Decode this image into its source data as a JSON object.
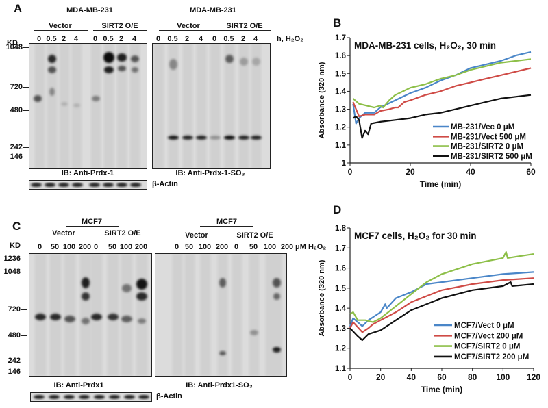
{
  "panels": {
    "a": {
      "letter": "A",
      "cell_line_left": "MDA-MB-231",
      "cell_line_right": "MDA-MB-231",
      "group_vector": "Vector",
      "group_sirt2": "SIRT2 O/E",
      "lanes_left": [
        "0",
        "0.5",
        "2",
        "4",
        "0",
        "0.5",
        "2",
        "4"
      ],
      "lanes_right": [
        "0",
        "0.5",
        "2",
        "4",
        "0",
        "0.5",
        "2",
        "4"
      ],
      "unit_label": "h,  H₂O₂",
      "kd_header": "KD",
      "kd_markers": [
        "1048",
        "720",
        "480",
        "242",
        "146"
      ],
      "ib_left": "IB: Anti-Prdx-1",
      "ib_right": "IB: Anti-Prdx-1-SO₃",
      "loading_control": "β-Actin"
    },
    "c": {
      "letter": "C",
      "cell_line_left": "MCF7",
      "cell_line_right": "MCF7",
      "group_vector": "Vector",
      "group_sirt2": "SIRT2 O/E",
      "lanes_left": [
        "0",
        "50",
        "100",
        "200",
        "0",
        "50",
        "100",
        "200"
      ],
      "lanes_right": [
        "0",
        "50",
        "100",
        "200",
        "0",
        "50",
        "100",
        "200"
      ],
      "unit_label": "μM H₂O₂",
      "kd_header": "KD",
      "kd_markers": [
        "1236",
        "1048",
        "720",
        "480",
        "242",
        "146"
      ],
      "ib_left": "IB: Anti-Prdx1",
      "ib_right": "IB: Anti-Prdx1-SO₃",
      "loading_control": "β-Actin"
    },
    "b_letter": "B",
    "d_letter": "D"
  },
  "chart_data": [
    {
      "panel": "B",
      "type": "line",
      "title": "MDA-MB-231 cells, H₂O₂,  30 min",
      "xlabel": "Time (min)",
      "ylabel": "Absorbance (320 nm)",
      "xlim": [
        0,
        60
      ],
      "ylim": [
        1,
        1.7
      ],
      "xticks": [
        "0",
        "20",
        "40",
        "60"
      ],
      "yticks": [
        "1",
        "1.1",
        "1.2",
        "1.3",
        "1.4",
        "1.5",
        "1.6",
        "1.7"
      ],
      "xtick_values": [
        0,
        20,
        40,
        60
      ],
      "ytick_values": [
        1,
        1.1,
        1.2,
        1.3,
        1.4,
        1.5,
        1.6,
        1.7
      ],
      "grid": false,
      "legend_position": "bottom-right",
      "series": [
        {
          "name": "MB-231/Vec 0 μM",
          "color": "#4a86c8",
          "x": [
            1,
            2,
            3,
            5,
            8,
            10,
            15,
            20,
            25,
            30,
            35,
            40,
            45,
            50,
            55,
            60
          ],
          "y": [
            1.33,
            1.22,
            1.25,
            1.28,
            1.28,
            1.31,
            1.35,
            1.39,
            1.42,
            1.46,
            1.49,
            1.53,
            1.55,
            1.57,
            1.6,
            1.62
          ]
        },
        {
          "name": "MB-231/Vect 500 μM",
          "color": "#cf4b46",
          "x": [
            1,
            3,
            5,
            8,
            10,
            13,
            15,
            16,
            18,
            20,
            25,
            30,
            35,
            40,
            45,
            50,
            55,
            60
          ],
          "y": [
            1.34,
            1.26,
            1.27,
            1.27,
            1.29,
            1.3,
            1.31,
            1.31,
            1.34,
            1.35,
            1.38,
            1.4,
            1.43,
            1.45,
            1.47,
            1.49,
            1.51,
            1.53
          ]
        },
        {
          "name": "MB-231/SIRT2 0 μM",
          "color": "#8dbf48",
          "x": [
            1,
            3,
            8,
            10,
            11,
            13,
            15,
            20,
            25,
            30,
            35,
            40,
            45,
            50,
            55,
            60
          ],
          "y": [
            1.36,
            1.33,
            1.31,
            1.32,
            1.31,
            1.35,
            1.38,
            1.42,
            1.44,
            1.47,
            1.49,
            1.52,
            1.54,
            1.56,
            1.57,
            1.58
          ]
        },
        {
          "name": "MB-231/SIRT2 500 μM",
          "color": "#111111",
          "x": [
            1,
            2,
            3,
            4,
            5,
            6,
            7,
            10,
            15,
            20,
            25,
            30,
            35,
            40,
            45,
            50,
            55,
            60
          ],
          "y": [
            1.25,
            1.26,
            1.24,
            1.14,
            1.18,
            1.16,
            1.22,
            1.23,
            1.24,
            1.25,
            1.27,
            1.28,
            1.3,
            1.32,
            1.34,
            1.36,
            1.37,
            1.38
          ]
        }
      ]
    },
    {
      "panel": "D",
      "type": "line",
      "title": "MCF7 cells,  H₂O₂ for 30 min",
      "xlabel": "Time (min)",
      "ylabel": "Absorbance (320 nm)",
      "xlim": [
        0,
        120
      ],
      "ylim": [
        1.1,
        1.8
      ],
      "xticks": [
        "0",
        "20",
        "40",
        "60",
        "80",
        "100",
        "120"
      ],
      "yticks": [
        "1.1",
        "1.2",
        "1.3",
        "1.4",
        "1.5",
        "1.6",
        "1.7",
        "1.8"
      ],
      "xtick_values": [
        0,
        20,
        40,
        60,
        80,
        100,
        120
      ],
      "ytick_values": [
        1.1,
        1.2,
        1.3,
        1.4,
        1.5,
        1.6,
        1.7,
        1.8
      ],
      "grid": false,
      "legend_position": "bottom-right",
      "series": [
        {
          "name": "MCF7/Vect 0 μM",
          "color": "#4a86c8",
          "x": [
            0,
            2,
            5,
            8,
            12,
            20,
            23,
            24,
            30,
            40,
            50,
            60,
            80,
            100,
            120
          ],
          "y": [
            1.31,
            1.35,
            1.33,
            1.31,
            1.34,
            1.38,
            1.42,
            1.4,
            1.45,
            1.48,
            1.52,
            1.53,
            1.55,
            1.57,
            1.58
          ]
        },
        {
          "name": "MCF7/Vect 200 μM",
          "color": "#cf4b46",
          "x": [
            0,
            2,
            8,
            12,
            15,
            20,
            30,
            40,
            60,
            80,
            100,
            120
          ],
          "y": [
            1.3,
            1.33,
            1.28,
            1.3,
            1.32,
            1.34,
            1.38,
            1.43,
            1.49,
            1.52,
            1.54,
            1.55
          ]
        },
        {
          "name": "MCF7/SIRT2 0 μM",
          "color": "#8dbf48",
          "x": [
            0,
            2,
            5,
            10,
            15,
            20,
            30,
            40,
            50,
            60,
            80,
            100,
            102,
            103,
            120
          ],
          "y": [
            1.37,
            1.38,
            1.34,
            1.34,
            1.33,
            1.35,
            1.41,
            1.47,
            1.53,
            1.57,
            1.62,
            1.65,
            1.68,
            1.65,
            1.67
          ]
        },
        {
          "name": "MCF7/SIRT2 200 μM",
          "color": "#111111",
          "x": [
            0,
            5,
            8,
            12,
            20,
            30,
            40,
            60,
            80,
            100,
            105,
            106,
            120
          ],
          "y": [
            1.3,
            1.26,
            1.24,
            1.27,
            1.29,
            1.34,
            1.39,
            1.45,
            1.49,
            1.51,
            1.53,
            1.51,
            1.52
          ]
        }
      ]
    }
  ]
}
